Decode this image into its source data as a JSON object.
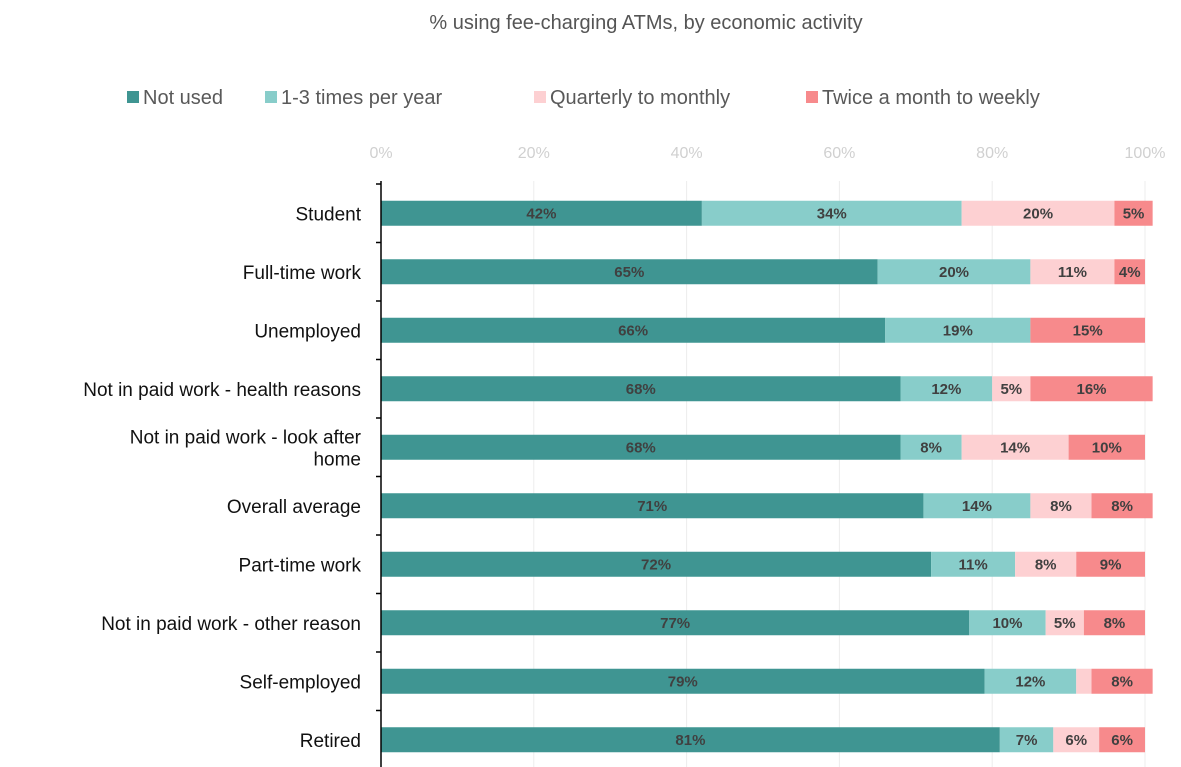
{
  "chart_data": {
    "type": "bar",
    "orientation": "horizontal",
    "stacked": true,
    "title": "% using fee-charging ATMs, by economic activity",
    "xlim": [
      0,
      100
    ],
    "xticks": [
      "0%",
      "20%",
      "40%",
      "60%",
      "80%",
      "100%"
    ],
    "xaxis_position": "top",
    "grid": true,
    "legend_position": "top",
    "categories": [
      [
        "Student"
      ],
      [
        "Full-time work"
      ],
      [
        "Unemployed"
      ],
      [
        "Not in paid work - health reasons"
      ],
      [
        "Not in paid work - look after",
        "home"
      ],
      [
        "Overall average"
      ],
      [
        "Part-time work"
      ],
      [
        "Not in paid work - other reason"
      ],
      [
        "Self-employed"
      ],
      [
        "Retired"
      ]
    ],
    "series": [
      {
        "name": "Not used",
        "color": "#3f9592",
        "values": [
          42,
          65,
          66,
          68,
          68,
          71,
          72,
          77,
          79,
          81
        ],
        "labels": [
          "42%",
          "65%",
          "66%",
          "68%",
          "68%",
          "71%",
          "72%",
          "77%",
          "79%",
          "81%"
        ]
      },
      {
        "name": "1-3 times per year",
        "color": "#88cdca",
        "values": [
          34,
          20,
          19,
          12,
          8,
          14,
          11,
          10,
          12,
          7
        ],
        "labels": [
          "34%",
          "20%",
          "19%",
          "12%",
          "8%",
          "14%",
          "11%",
          "10%",
          "12%",
          "7%"
        ]
      },
      {
        "name": "Quarterly to monthly",
        "color": "#fdd0d2",
        "values": [
          20,
          11,
          0,
          5,
          14,
          8,
          8,
          5,
          2,
          6
        ],
        "labels": [
          "20%",
          "11%",
          "",
          "5%",
          "14%",
          "8%",
          "8%",
          "5%",
          "",
          "6%"
        ]
      },
      {
        "name": "Twice a month to weekly",
        "color": "#f78a8c",
        "values": [
          5,
          4,
          15,
          16,
          10,
          8,
          9,
          8,
          8,
          6
        ],
        "labels": [
          "5%",
          "4%",
          "15%",
          "16%",
          "10%",
          "8%",
          "9%",
          "8%",
          "8%",
          "6%"
        ]
      }
    ]
  }
}
